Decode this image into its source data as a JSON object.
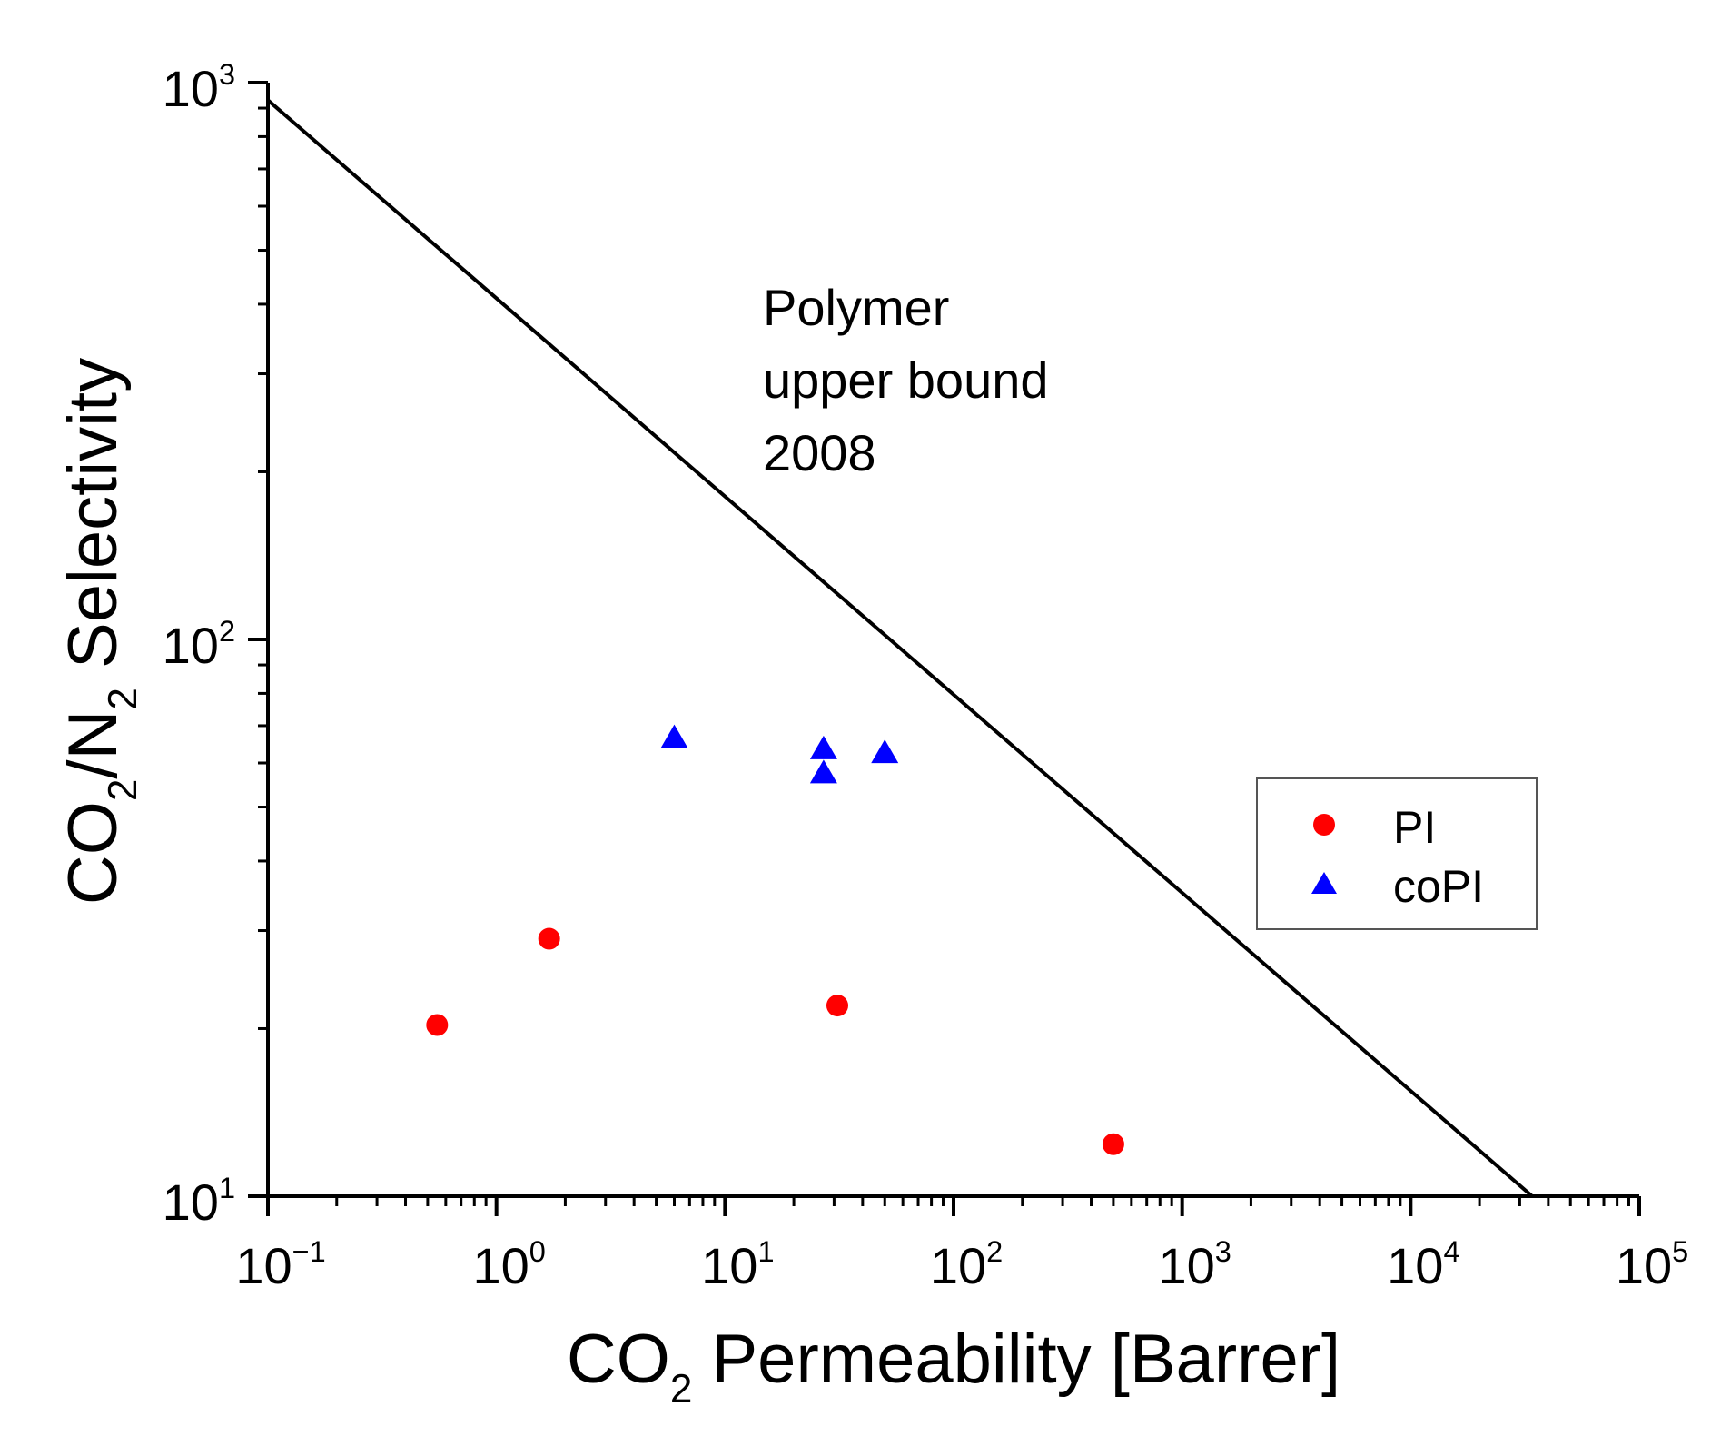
{
  "chart_data": {
    "type": "scatter",
    "xscale": "log",
    "yscale": "log",
    "xlim": [
      0.1,
      100000
    ],
    "ylim": [
      10,
      1000
    ],
    "xlabel": {
      "pre": "CO",
      "sub": "2",
      "post": " Permeability [Barrer]"
    },
    "ylabel": {
      "p1": "CO",
      "s1": "2",
      "p2": "/N",
      "s2": "2",
      "p3": " Selectivity"
    },
    "xticks": [
      {
        "base": "10",
        "exp": "−1",
        "value": 0.1
      },
      {
        "base": "10",
        "exp": "0",
        "value": 1
      },
      {
        "base": "10",
        "exp": "1",
        "value": 10
      },
      {
        "base": "10",
        "exp": "2",
        "value": 100
      },
      {
        "base": "10",
        "exp": "3",
        "value": 1000
      },
      {
        "base": "10",
        "exp": "4",
        "value": 10000
      },
      {
        "base": "10",
        "exp": "5",
        "value": 100000
      }
    ],
    "yticks": [
      {
        "base": "10",
        "exp": "1",
        "value": 10
      },
      {
        "base": "10",
        "exp": "2",
        "value": 100
      },
      {
        "base": "10",
        "exp": "3",
        "value": 1000
      }
    ],
    "upper_bound": {
      "label_lines": [
        "Polymer",
        "upper bound",
        "2008"
      ],
      "x": [
        0.1,
        34000
      ],
      "y": [
        930,
        10
      ],
      "color": "#000000"
    },
    "series": [
      {
        "name": "PI",
        "marker": "circle",
        "color": "#ff0000",
        "points": [
          {
            "x": 0.55,
            "y": 20.3
          },
          {
            "x": 1.7,
            "y": 29.0
          },
          {
            "x": 31,
            "y": 22.0
          },
          {
            "x": 500,
            "y": 12.4
          }
        ]
      },
      {
        "name": "coPI",
        "marker": "triangle",
        "color": "#0000ff",
        "points": [
          {
            "x": 6.0,
            "y": 66.5
          },
          {
            "x": 27,
            "y": 63.5
          },
          {
            "x": 27,
            "y": 57.5
          },
          {
            "x": 50,
            "y": 62.5
          }
        ]
      }
    ],
    "legend_position": "center-right"
  }
}
